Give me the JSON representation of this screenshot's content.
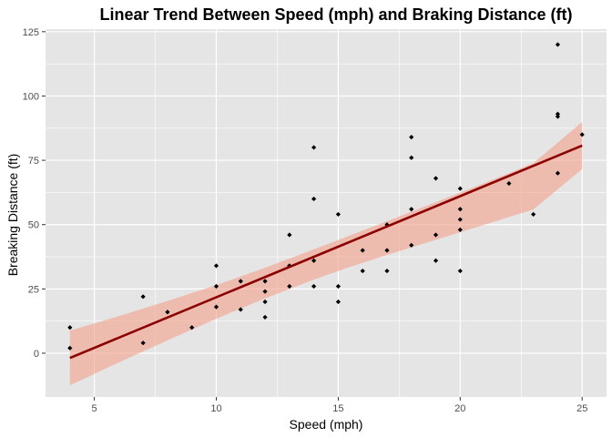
{
  "chart_data": {
    "type": "scatter",
    "title": "Linear Trend Between Speed (mph) and Braking Distance (ft)",
    "xlabel": "Speed (mph)",
    "ylabel": "Breaking Distance (ft)",
    "xlim": [
      3.0,
      26.0
    ],
    "ylim": [
      -17.0,
      126.0
    ],
    "x_ticks": [
      5,
      10,
      15,
      20,
      25
    ],
    "y_ticks": [
      0,
      25,
      50,
      75,
      100,
      125
    ],
    "grid": true,
    "legend": "none",
    "points": [
      {
        "x": 4,
        "y": 2
      },
      {
        "x": 4,
        "y": 10
      },
      {
        "x": 7,
        "y": 4
      },
      {
        "x": 7,
        "y": 22
      },
      {
        "x": 8,
        "y": 16
      },
      {
        "x": 9,
        "y": 10
      },
      {
        "x": 10,
        "y": 18
      },
      {
        "x": 10,
        "y": 26
      },
      {
        "x": 10,
        "y": 34
      },
      {
        "x": 11,
        "y": 17
      },
      {
        "x": 11,
        "y": 28
      },
      {
        "x": 12,
        "y": 14
      },
      {
        "x": 12,
        "y": 20
      },
      {
        "x": 12,
        "y": 24
      },
      {
        "x": 12,
        "y": 28
      },
      {
        "x": 13,
        "y": 26
      },
      {
        "x": 13,
        "y": 34
      },
      {
        "x": 13,
        "y": 34
      },
      {
        "x": 13,
        "y": 46
      },
      {
        "x": 14,
        "y": 26
      },
      {
        "x": 14,
        "y": 36
      },
      {
        "x": 14,
        "y": 60
      },
      {
        "x": 14,
        "y": 80
      },
      {
        "x": 15,
        "y": 20
      },
      {
        "x": 15,
        "y": 26
      },
      {
        "x": 15,
        "y": 54
      },
      {
        "x": 16,
        "y": 32
      },
      {
        "x": 16,
        "y": 40
      },
      {
        "x": 17,
        "y": 32
      },
      {
        "x": 17,
        "y": 40
      },
      {
        "x": 17,
        "y": 50
      },
      {
        "x": 18,
        "y": 42
      },
      {
        "x": 18,
        "y": 56
      },
      {
        "x": 18,
        "y": 76
      },
      {
        "x": 18,
        "y": 84
      },
      {
        "x": 19,
        "y": 36
      },
      {
        "x": 19,
        "y": 46
      },
      {
        "x": 19,
        "y": 68
      },
      {
        "x": 20,
        "y": 32
      },
      {
        "x": 20,
        "y": 48
      },
      {
        "x": 20,
        "y": 52
      },
      {
        "x": 20,
        "y": 56
      },
      {
        "x": 20,
        "y": 64
      },
      {
        "x": 22,
        "y": 66
      },
      {
        "x": 23,
        "y": 54
      },
      {
        "x": 24,
        "y": 70
      },
      {
        "x": 24,
        "y": 92
      },
      {
        "x": 24,
        "y": 93
      },
      {
        "x": 24,
        "y": 120
      },
      {
        "x": 25,
        "y": 85
      }
    ],
    "trend_line": {
      "x": [
        4,
        25
      ],
      "y": [
        -1.85,
        80.73
      ]
    },
    "confidence_band": {
      "x": [
        4,
        6,
        8,
        10,
        12,
        14,
        15.4,
        17,
        19,
        21,
        23,
        25
      ],
      "lower": [
        -12.5,
        -3.6,
        5.0,
        13.4,
        21.3,
        28.6,
        33.3,
        38.2,
        44.1,
        50.0,
        55.9,
        71.6
      ],
      "upper": [
        8.8,
        14.4,
        20.3,
        26.5,
        33.2,
        40.4,
        45.5,
        51.3,
        58.7,
        66.2,
        73.9,
        89.9
      ]
    },
    "colors": {
      "panel_background": "#e5e5e5",
      "grid": "#ffffff",
      "points": "#000000",
      "trend_line": "#8b0000",
      "confidence_band": "#f4a08a"
    }
  }
}
